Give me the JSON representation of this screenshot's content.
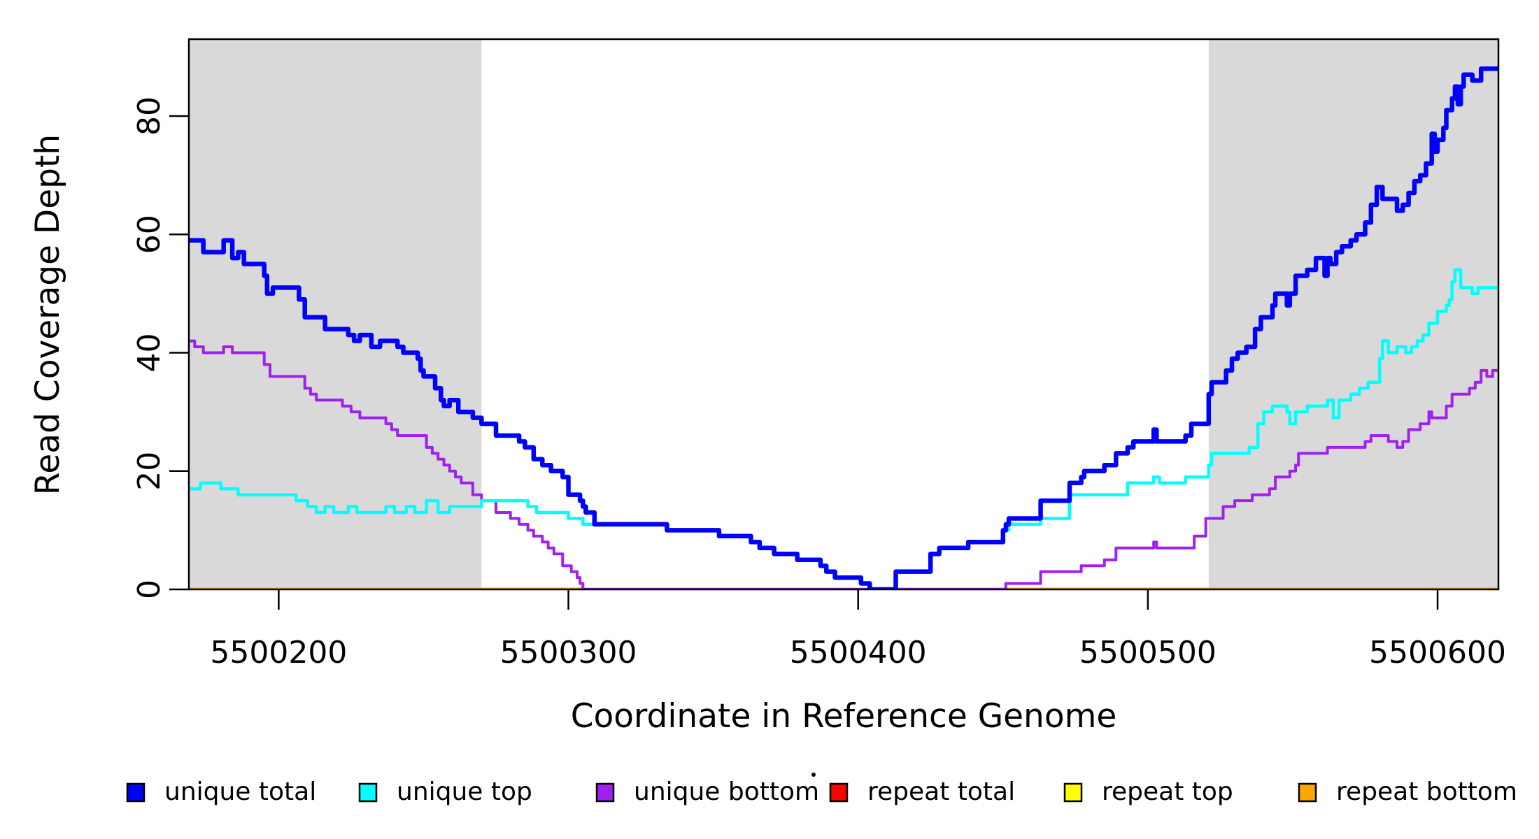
{
  "chart_data": {
    "type": "line",
    "step": true,
    "title": "",
    "xlabel": "Coordinate in Reference Genome",
    "ylabel": "Read Coverage Depth",
    "xlim": [
      5500169,
      5500621
    ],
    "ylim": [
      0,
      93
    ],
    "x_ticks": [
      5500200,
      5500300,
      5500400,
      5500500,
      5500600
    ],
    "y_ticks": [
      0,
      20,
      40,
      60,
      80
    ],
    "grid": false,
    "background_color": "#FFFFFF",
    "box_color": "#000000",
    "shade_color": "#D9D9D9",
    "shaded_regions": [
      {
        "x0": 5500169,
        "x1": 5500270
      },
      {
        "x0": 5500521,
        "x1": 5500621
      }
    ],
    "legend_position": "bottom",
    "draw_order": [
      "repeat total",
      "repeat top",
      "repeat bottom",
      "unique bottom",
      "unique top",
      "unique total"
    ],
    "series": [
      {
        "name": "unique total",
        "color": "#0000FF",
        "line_width": 6.5,
        "points": [
          [
            5500169,
            59
          ],
          [
            5500174,
            57
          ],
          [
            5500181,
            59
          ],
          [
            5500184,
            56
          ],
          [
            5500186,
            57
          ],
          [
            5500188,
            55
          ],
          [
            5500195,
            53
          ],
          [
            5500196,
            50
          ],
          [
            5500198,
            51
          ],
          [
            5500207,
            49
          ],
          [
            5500209,
            46
          ],
          [
            5500216,
            44
          ],
          [
            5500224,
            43
          ],
          [
            5500226,
            42
          ],
          [
            5500228,
            43
          ],
          [
            5500232,
            41
          ],
          [
            5500235,
            42
          ],
          [
            5500241,
            41
          ],
          [
            5500243,
            40
          ],
          [
            5500248,
            39
          ],
          [
            5500249,
            37
          ],
          [
            5500250,
            36
          ],
          [
            5500254,
            34
          ],
          [
            5500256,
            32
          ],
          [
            5500257,
            31
          ],
          [
            5500259,
            32
          ],
          [
            5500262,
            30
          ],
          [
            5500267,
            29
          ],
          [
            5500270,
            28
          ],
          [
            5500275,
            26
          ],
          [
            5500283,
            25
          ],
          [
            5500285,
            24
          ],
          [
            5500288,
            22
          ],
          [
            5500291,
            21
          ],
          [
            5500294,
            20
          ],
          [
            5500298,
            19
          ],
          [
            5500300,
            16
          ],
          [
            5500304,
            15
          ],
          [
            5500305,
            14
          ],
          [
            5500306,
            13
          ],
          [
            5500309,
            11
          ],
          [
            5500334,
            10
          ],
          [
            5500352,
            9
          ],
          [
            5500363,
            8
          ],
          [
            5500366,
            7
          ],
          [
            5500371,
            6
          ],
          [
            5500379,
            5
          ],
          [
            5500387,
            4
          ],
          [
            5500389,
            3
          ],
          [
            5500392,
            2
          ],
          [
            5500401,
            1
          ],
          [
            5500404,
            0
          ],
          [
            5500413,
            3
          ],
          [
            5500425,
            6
          ],
          [
            5500428,
            7
          ],
          [
            5500438,
            8
          ],
          [
            5500450,
            10
          ],
          [
            5500451,
            11
          ],
          [
            5500452,
            12
          ],
          [
            5500463,
            15
          ],
          [
            5500473,
            18
          ],
          [
            5500477,
            19
          ],
          [
            5500478,
            20
          ],
          [
            5500485,
            21
          ],
          [
            5500489,
            23
          ],
          [
            5500493,
            24
          ],
          [
            5500495,
            25
          ],
          [
            5500502,
            27
          ],
          [
            5500503,
            25
          ],
          [
            5500513,
            26
          ],
          [
            5500515,
            28
          ],
          [
            5500521,
            33
          ],
          [
            5500522,
            35
          ],
          [
            5500527,
            37
          ],
          [
            5500529,
            39
          ],
          [
            5500531,
            40
          ],
          [
            5500534,
            41
          ],
          [
            5500537,
            44
          ],
          [
            5500539,
            46
          ],
          [
            5500543,
            48
          ],
          [
            5500544,
            50
          ],
          [
            5500548,
            48
          ],
          [
            5500549,
            50
          ],
          [
            5500551,
            53
          ],
          [
            5500555,
            54
          ],
          [
            5500558,
            56
          ],
          [
            5500561,
            53
          ],
          [
            5500562,
            56
          ],
          [
            5500563,
            55
          ],
          [
            5500565,
            57
          ],
          [
            5500567,
            58
          ],
          [
            5500570,
            59
          ],
          [
            5500572,
            60
          ],
          [
            5500575,
            62
          ],
          [
            5500577,
            65
          ],
          [
            5500579,
            68
          ],
          [
            5500581,
            66
          ],
          [
            5500586,
            64
          ],
          [
            5500588,
            65
          ],
          [
            5500590,
            67
          ],
          [
            5500592,
            69
          ],
          [
            5500594,
            70
          ],
          [
            5500596,
            72
          ],
          [
            5500598,
            77
          ],
          [
            5500599,
            74
          ],
          [
            5500600,
            76
          ],
          [
            5500602,
            78
          ],
          [
            5500603,
            81
          ],
          [
            5500605,
            83
          ],
          [
            5500606,
            85
          ],
          [
            5500607,
            82
          ],
          [
            5500608,
            85
          ],
          [
            5500609,
            87
          ],
          [
            5500612,
            86
          ],
          [
            5500615,
            88
          ],
          [
            5500620,
            88
          ]
        ]
      },
      {
        "name": "unique top",
        "color": "#00FFFF",
        "line_width": 4.5,
        "points": [
          [
            5500169,
            17
          ],
          [
            5500173,
            18
          ],
          [
            5500180,
            17
          ],
          [
            5500186,
            16
          ],
          [
            5500206,
            15
          ],
          [
            5500210,
            14
          ],
          [
            5500213,
            13
          ],
          [
            5500216,
            14
          ],
          [
            5500219,
            13
          ],
          [
            5500224,
            14
          ],
          [
            5500227,
            13
          ],
          [
            5500237,
            14
          ],
          [
            5500240,
            13
          ],
          [
            5500244,
            14
          ],
          [
            5500247,
            13
          ],
          [
            5500251,
            15
          ],
          [
            5500255,
            13
          ],
          [
            5500259,
            14
          ],
          [
            5500270,
            15
          ],
          [
            5500286,
            14
          ],
          [
            5500289,
            13
          ],
          [
            5500300,
            12
          ],
          [
            5500305,
            11
          ],
          [
            5500334,
            10
          ],
          [
            5500352,
            9
          ],
          [
            5500363,
            8
          ],
          [
            5500366,
            7
          ],
          [
            5500371,
            6
          ],
          [
            5500379,
            5
          ],
          [
            5500387,
            4
          ],
          [
            5500389,
            3
          ],
          [
            5500392,
            2
          ],
          [
            5500401,
            1
          ],
          [
            5500404,
            0
          ],
          [
            5500413,
            3
          ],
          [
            5500425,
            6
          ],
          [
            5500428,
            7
          ],
          [
            5500438,
            8
          ],
          [
            5500450,
            10
          ],
          [
            5500452,
            11
          ],
          [
            5500463,
            12
          ],
          [
            5500473,
            16
          ],
          [
            5500493,
            18
          ],
          [
            5500502,
            19
          ],
          [
            5500504,
            18
          ],
          [
            5500513,
            19
          ],
          [
            5500521,
            21
          ],
          [
            5500522,
            23
          ],
          [
            5500535,
            24
          ],
          [
            5500538,
            28
          ],
          [
            5500540,
            30
          ],
          [
            5500543,
            31
          ],
          [
            5500548,
            30
          ],
          [
            5500549,
            28
          ],
          [
            5500551,
            30
          ],
          [
            5500555,
            31
          ],
          [
            5500562,
            32
          ],
          [
            5500564,
            29
          ],
          [
            5500566,
            32
          ],
          [
            5500570,
            33
          ],
          [
            5500573,
            34
          ],
          [
            5500576,
            35
          ],
          [
            5500580,
            39
          ],
          [
            5500581,
            42
          ],
          [
            5500583,
            40
          ],
          [
            5500586,
            41
          ],
          [
            5500589,
            40
          ],
          [
            5500591,
            41
          ],
          [
            5500593,
            42
          ],
          [
            5500595,
            43
          ],
          [
            5500597,
            45
          ],
          [
            5500600,
            47
          ],
          [
            5500603,
            48
          ],
          [
            5500604,
            49
          ],
          [
            5500605,
            52
          ],
          [
            5500606,
            54
          ],
          [
            5500608,
            51
          ],
          [
            5500612,
            50
          ],
          [
            5500614,
            51
          ],
          [
            5500620,
            51
          ]
        ]
      },
      {
        "name": "unique bottom",
        "color": "#A020F0",
        "line_width": 4,
        "points": [
          [
            5500169,
            42
          ],
          [
            5500171,
            41
          ],
          [
            5500174,
            40
          ],
          [
            5500181,
            41
          ],
          [
            5500184,
            40
          ],
          [
            5500195,
            38
          ],
          [
            5500197,
            36
          ],
          [
            5500209,
            34
          ],
          [
            5500211,
            33
          ],
          [
            5500213,
            32
          ],
          [
            5500222,
            31
          ],
          [
            5500225,
            30
          ],
          [
            5500228,
            29
          ],
          [
            5500237,
            28
          ],
          [
            5500239,
            27
          ],
          [
            5500241,
            26
          ],
          [
            5500251,
            24
          ],
          [
            5500253,
            23
          ],
          [
            5500255,
            22
          ],
          [
            5500257,
            21
          ],
          [
            5500259,
            20
          ],
          [
            5500261,
            19
          ],
          [
            5500263,
            18
          ],
          [
            5500267,
            16
          ],
          [
            5500270,
            15
          ],
          [
            5500275,
            13
          ],
          [
            5500280,
            12
          ],
          [
            5500283,
            11
          ],
          [
            5500286,
            10
          ],
          [
            5500288,
            9
          ],
          [
            5500291,
            8
          ],
          [
            5500293,
            7
          ],
          [
            5500295,
            6
          ],
          [
            5500298,
            4
          ],
          [
            5500301,
            3
          ],
          [
            5500303,
            2
          ],
          [
            5500304,
            1
          ],
          [
            5500305,
            0
          ],
          [
            5500451,
            1
          ],
          [
            5500463,
            3
          ],
          [
            5500477,
            4
          ],
          [
            5500485,
            5
          ],
          [
            5500489,
            7
          ],
          [
            5500502,
            8
          ],
          [
            5500503,
            7
          ],
          [
            5500516,
            9
          ],
          [
            5500520,
            12
          ],
          [
            5500526,
            14
          ],
          [
            5500530,
            15
          ],
          [
            5500536,
            16
          ],
          [
            5500542,
            17
          ],
          [
            5500544,
            19
          ],
          [
            5500549,
            20
          ],
          [
            5500551,
            21
          ],
          [
            5500552,
            23
          ],
          [
            5500562,
            24
          ],
          [
            5500575,
            25
          ],
          [
            5500577,
            26
          ],
          [
            5500583,
            25
          ],
          [
            5500586,
            24
          ],
          [
            5500588,
            25
          ],
          [
            5500590,
            27
          ],
          [
            5500594,
            28
          ],
          [
            5500597,
            30
          ],
          [
            5500598,
            29
          ],
          [
            5500603,
            31
          ],
          [
            5500605,
            33
          ],
          [
            5500611,
            34
          ],
          [
            5500613,
            35
          ],
          [
            5500615,
            37
          ],
          [
            5500617,
            36
          ],
          [
            5500619,
            37
          ]
        ]
      },
      {
        "name": "repeat total",
        "color": "#FF0000",
        "line_width": 5,
        "points": [
          [
            5500169,
            0
          ],
          [
            5500620,
            0
          ]
        ]
      },
      {
        "name": "repeat top",
        "color": "#FFFF00",
        "line_width": 5,
        "points": [
          [
            5500169,
            0
          ],
          [
            5500620,
            0
          ]
        ]
      },
      {
        "name": "repeat bottom",
        "color": "#FFA500",
        "line_width": 5,
        "points": [
          [
            5500169,
            0
          ],
          [
            5500620,
            0
          ]
        ]
      }
    ]
  }
}
